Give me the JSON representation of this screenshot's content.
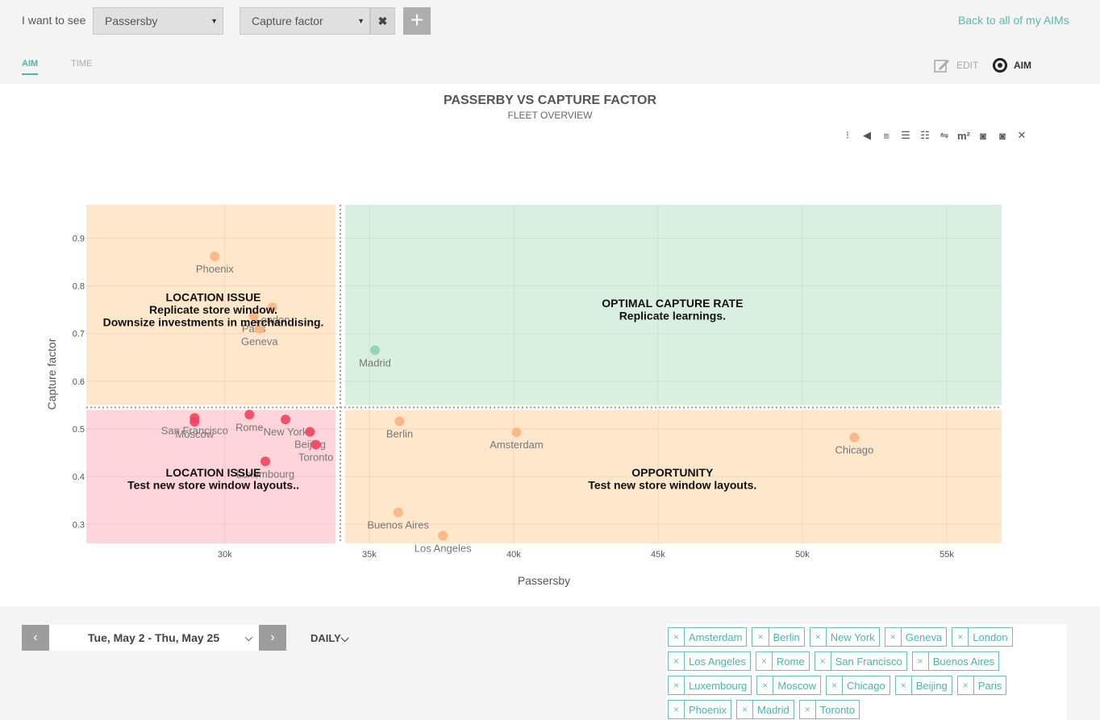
{
  "filters": {
    "label": "I want to see",
    "metric_x": "Passersby",
    "metric_y": "Capture factor",
    "clear_icon": "✖",
    "add_icon": "+"
  },
  "back_link": "Back to all of my AIMs",
  "tabs": [
    {
      "label": "AIM",
      "active": true
    },
    {
      "label": "TIME",
      "active": false
    }
  ],
  "mode": {
    "edit_label": "EDIT",
    "aim_label": "AIM"
  },
  "chart_tools": [
    {
      "icon": "filter-icon",
      "glyph": "⁝"
    },
    {
      "icon": "tag-icon",
      "glyph": "◀"
    },
    {
      "icon": "label-toggle-icon",
      "glyph": "≡"
    },
    {
      "icon": "comment-icon",
      "glyph": "☰"
    },
    {
      "icon": "list-icon",
      "glyph": "☷"
    },
    {
      "icon": "car-icon",
      "glyph": "⇋"
    },
    {
      "icon": "area-icon",
      "glyph": "m²"
    },
    {
      "icon": "camera-icon",
      "glyph": "◙"
    },
    {
      "icon": "camera-icon-2",
      "glyph": "◙"
    },
    {
      "icon": "excel-export-icon",
      "glyph": "✕"
    }
  ],
  "chart_data": {
    "type": "scatter",
    "title": "PASSERBY VS CAPTURE FACTOR",
    "subtitle": "FLEET OVERVIEW",
    "xlabel": "Passersby",
    "ylabel": "Capture factor",
    "xlim": [
      25200,
      56900
    ],
    "ylim": [
      0.26,
      0.97
    ],
    "x_ticks": [
      30000,
      35000,
      40000,
      45000,
      50000,
      55000
    ],
    "x_tick_labels": [
      "30k",
      "35k",
      "40k",
      "45k",
      "50k",
      "55k"
    ],
    "y_ticks": [
      0.3,
      0.4,
      0.5,
      0.6,
      0.7,
      0.8,
      0.9
    ],
    "y_tick_labels": [
      "0.3",
      "0.4",
      "0.5",
      "0.6",
      "0.7",
      "0.8",
      "0.9"
    ],
    "x_threshold": 34000,
    "y_threshold": 0.545,
    "grid": true,
    "colors": {
      "top_left_zone": "#fee7cb",
      "top_right_zone": "#d9f0e1",
      "bottom_left_zone": "#fdd5da",
      "bottom_right_zone": "#fee7cb",
      "orange_point": "#fdb27f",
      "green_point": "#88d2b6",
      "red_point": "#f2435e",
      "threshold_line": "#9a9a9a"
    },
    "quadrants": [
      {
        "id": "top-left",
        "lines": [
          "LOCATION ISSUE",
          "Replicate store window.",
          "Downsize investments in merchandising."
        ],
        "x": 29600,
        "y": 0.768
      },
      {
        "id": "top-right",
        "lines": [
          "OPTIMAL CAPTURE RATE",
          "Replicate learnings."
        ],
        "x": 45500,
        "y": 0.755
      },
      {
        "id": "bottom-left",
        "lines": [
          "LOCATION ISSUE",
          "Test new store window layouts.."
        ],
        "x": 29600,
        "y": 0.4
      },
      {
        "id": "bottom-right",
        "lines": [
          "OPPORTUNITY",
          "Test new store window layouts."
        ],
        "x": 45500,
        "y": 0.4
      }
    ],
    "points": [
      {
        "name": "Phoenix",
        "x": 29650,
        "y": 0.862,
        "color": "orange"
      },
      {
        "name": "London",
        "x": 31650,
        "y": 0.755,
        "color": "orange"
      },
      {
        "name": "Paris",
        "x": 31000,
        "y": 0.737,
        "color": "orange"
      },
      {
        "name": "Geneva",
        "x": 31200,
        "y": 0.71,
        "color": "orange"
      },
      {
        "name": "Madrid",
        "x": 35200,
        "y": 0.665,
        "color": "green"
      },
      {
        "name": "San Francisco",
        "x": 28950,
        "y": 0.523,
        "color": "red"
      },
      {
        "name": "Moscow",
        "x": 28950,
        "y": 0.515,
        "color": "red"
      },
      {
        "name": "Rome",
        "x": 30850,
        "y": 0.53,
        "color": "red"
      },
      {
        "name": "New York",
        "x": 32100,
        "y": 0.52,
        "color": "red"
      },
      {
        "name": "Beijing",
        "x": 32950,
        "y": 0.494,
        "color": "red"
      },
      {
        "name": "Toronto",
        "x": 33150,
        "y": 0.467,
        "color": "red"
      },
      {
        "name": "Luxembourg",
        "x": 31400,
        "y": 0.432,
        "color": "red"
      },
      {
        "name": "Berlin",
        "x": 36050,
        "y": 0.516,
        "color": "orange"
      },
      {
        "name": "Amsterdam",
        "x": 40100,
        "y": 0.493,
        "color": "orange"
      },
      {
        "name": "Chicago",
        "x": 51800,
        "y": 0.482,
        "color": "orange"
      },
      {
        "name": "Buenos Aires",
        "x": 36000,
        "y": 0.325,
        "color": "orange"
      },
      {
        "name": "Los Angeles",
        "x": 37550,
        "y": 0.276,
        "color": "orange"
      }
    ]
  },
  "date_nav": {
    "prev_icon": "‹",
    "next_icon": "›",
    "range": "Tue, May 2 - Thu, May 25",
    "range_chevron": "⌵",
    "frequency": "DAILY⌵"
  },
  "selected_locations": [
    "Amsterdam",
    "Berlin",
    "New York",
    "Geneva",
    "London",
    "Los Angeles",
    "Rome",
    "San Francisco",
    "Buenos Aires",
    "Luxembourg",
    "Moscow",
    "Chicago",
    "Beijing",
    "Paris",
    "Phoenix",
    "Madrid",
    "Toronto"
  ],
  "tag_remove_icon": "×"
}
